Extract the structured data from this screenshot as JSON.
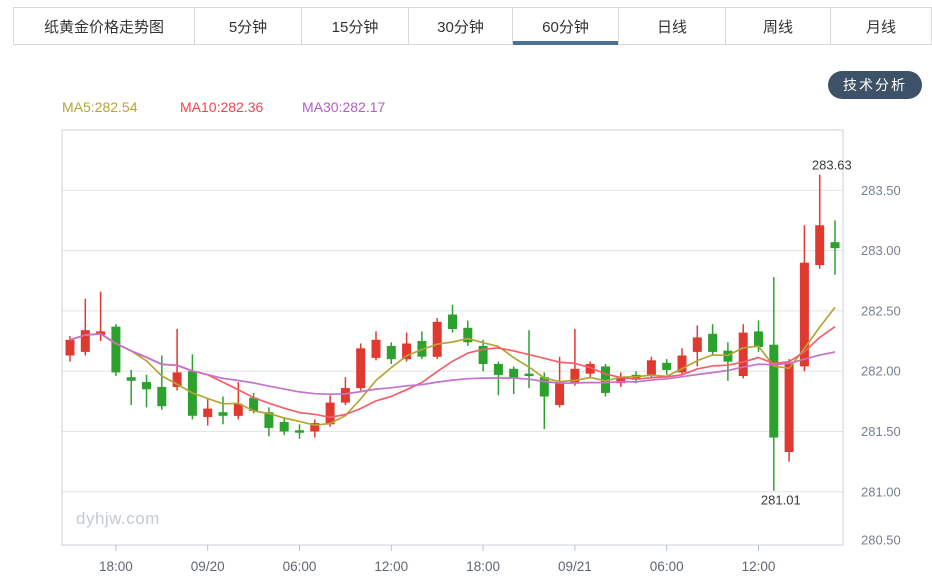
{
  "tabs": {
    "active_index": 4,
    "items": [
      {
        "id": "title",
        "label": "纸黄金价格走势图"
      },
      {
        "id": "5min",
        "label": "5分钟"
      },
      {
        "id": "15min",
        "label": "15分钟"
      },
      {
        "id": "30min",
        "label": "30分钟"
      },
      {
        "id": "60min",
        "label": "60分钟"
      },
      {
        "id": "daily",
        "label": "日线"
      },
      {
        "id": "weekly",
        "label": "周线"
      },
      {
        "id": "monthly",
        "label": "月线"
      }
    ],
    "active_underline_color": "#4c7095"
  },
  "toolbar": {
    "analysis_button": "技术分析"
  },
  "indicators": [
    {
      "id": "ma5-label",
      "label": "MA5:282.54",
      "color": "#b3a636"
    },
    {
      "id": "ma10-label",
      "label": "MA10:282.36",
      "color": "#f8414e"
    },
    {
      "id": "ma30-label",
      "label": "MA30:282.17",
      "color": "#b55bc8"
    }
  ],
  "watermark": "dyhjw.com",
  "chart_data": {
    "type": "candlestick",
    "interval": "60min",
    "up_color": "#e0392f",
    "down_color": "#2da12d",
    "grid_color": "#e3e3e3",
    "border_color": "#c8d0dd",
    "y_ticks": [
      283.5,
      283.0,
      282.5,
      282.0,
      281.5,
      281.0,
      280.5
    ],
    "ylim": [
      280.56,
      284.0
    ],
    "x_ticks": [
      {
        "index": 3,
        "label": "18:00"
      },
      {
        "index": 9,
        "label": "09/20"
      },
      {
        "index": 15,
        "label": "06:00"
      },
      {
        "index": 21,
        "label": "12:00"
      },
      {
        "index": 27,
        "label": "18:00"
      },
      {
        "index": 33,
        "label": "09/21"
      },
      {
        "index": 39,
        "label": "06:00"
      },
      {
        "index": 45,
        "label": "12:00"
      }
    ],
    "ma": [
      {
        "name": "MA5",
        "period": 5,
        "value": 282.54,
        "color": "#b3a636"
      },
      {
        "name": "MA10",
        "period": 10,
        "value": 282.36,
        "color": "#f2606b"
      },
      {
        "name": "MA30",
        "period": 30,
        "value": 282.17,
        "color": "#c473cc"
      }
    ],
    "annotations": [
      {
        "type": "high",
        "label": "283.63",
        "value": 283.63,
        "candle_index": 49
      },
      {
        "type": "low",
        "label": "281.01",
        "value": 281.01,
        "candle_index": 46
      }
    ],
    "candles": [
      [
        "15:00",
        282.13,
        282.29,
        282.08,
        282.26
      ],
      [
        "16:00",
        282.16,
        282.6,
        282.13,
        282.34
      ],
      [
        "17:00",
        282.3,
        282.66,
        282.25,
        282.33
      ],
      [
        "18:00",
        282.37,
        282.39,
        281.96,
        281.99
      ],
      [
        "19:00",
        281.95,
        282.01,
        281.72,
        281.92
      ],
      [
        "20:00",
        281.91,
        281.97,
        281.7,
        281.85
      ],
      [
        "21:00",
        281.87,
        282.13,
        281.68,
        281.71
      ],
      [
        "22:00",
        281.87,
        282.35,
        281.84,
        281.99
      ],
      [
        "23:00",
        282.0,
        282.14,
        281.6,
        281.63
      ],
      [
        "00:00",
        281.62,
        281.77,
        281.55,
        281.69
      ],
      [
        "01:00",
        281.66,
        281.79,
        281.56,
        281.63
      ],
      [
        "02:00",
        281.63,
        281.91,
        281.6,
        281.73
      ],
      [
        "03:00",
        281.78,
        281.82,
        281.65,
        281.67
      ],
      [
        "04:00",
        281.66,
        281.7,
        281.46,
        281.53
      ],
      [
        "05:00",
        281.58,
        281.62,
        281.47,
        281.5
      ],
      [
        "06:00",
        281.51,
        281.56,
        281.44,
        281.49
      ],
      [
        "07:00",
        281.5,
        281.6,
        281.45,
        281.57
      ],
      [
        "08:00",
        281.56,
        281.8,
        281.54,
        281.74
      ],
      [
        "09:00",
        281.74,
        281.95,
        281.72,
        281.86
      ],
      [
        "10:00",
        281.86,
        282.23,
        281.84,
        282.19
      ],
      [
        "11:00",
        282.11,
        282.33,
        282.09,
        282.26
      ],
      [
        "12:00",
        282.21,
        282.24,
        282.06,
        282.1
      ],
      [
        "13:00",
        282.1,
        282.32,
        282.08,
        282.23
      ],
      [
        "14:00",
        282.25,
        282.33,
        282.1,
        282.12
      ],
      [
        "15:00",
        282.12,
        282.44,
        282.1,
        282.41
      ],
      [
        "16:00",
        282.47,
        282.55,
        282.32,
        282.35
      ],
      [
        "17:00",
        282.36,
        282.42,
        282.21,
        282.24
      ],
      [
        "18:00",
        282.21,
        282.26,
        282.0,
        282.06
      ],
      [
        "19:00",
        282.06,
        282.08,
        281.8,
        281.97
      ],
      [
        "20:00",
        282.02,
        282.04,
        281.81,
        281.94
      ],
      [
        "21:00",
        281.98,
        282.34,
        281.86,
        281.96
      ],
      [
        "22:00",
        281.95,
        281.99,
        281.52,
        281.79
      ],
      [
        "23:00",
        281.72,
        282.12,
        281.7,
        281.91
      ],
      [
        "00:00",
        281.9,
        282.35,
        281.88,
        282.02
      ],
      [
        "01:00",
        281.98,
        282.08,
        281.95,
        282.06
      ],
      [
        "02:00",
        282.04,
        282.06,
        281.79,
        281.82
      ],
      [
        "03:00",
        281.9,
        281.99,
        281.87,
        281.94
      ],
      [
        "04:00",
        281.97,
        282.0,
        281.9,
        281.93
      ],
      [
        "05:00",
        281.96,
        282.12,
        281.94,
        282.09
      ],
      [
        "06:00",
        282.07,
        282.1,
        281.97,
        282.01
      ],
      [
        "07:00",
        281.99,
        282.19,
        281.97,
        282.13
      ],
      [
        "08:00",
        282.16,
        282.38,
        282.04,
        282.28
      ],
      [
        "09:00",
        282.31,
        282.39,
        282.13,
        282.16
      ],
      [
        "10:00",
        282.17,
        282.24,
        281.92,
        282.08
      ],
      [
        "11:00",
        281.96,
        282.39,
        281.94,
        282.32
      ],
      [
        "12:00",
        282.33,
        282.42,
        282.16,
        282.2
      ],
      [
        "13:00",
        282.22,
        282.78,
        281.01,
        281.45
      ],
      [
        "14:00",
        281.33,
        282.1,
        281.25,
        282.07
      ],
      [
        "15:00",
        282.04,
        283.21,
        282.0,
        282.9
      ],
      [
        "16:00",
        282.88,
        283.63,
        282.85,
        283.21
      ],
      [
        "17:00",
        283.07,
        283.25,
        282.8,
        283.02
      ]
    ]
  }
}
